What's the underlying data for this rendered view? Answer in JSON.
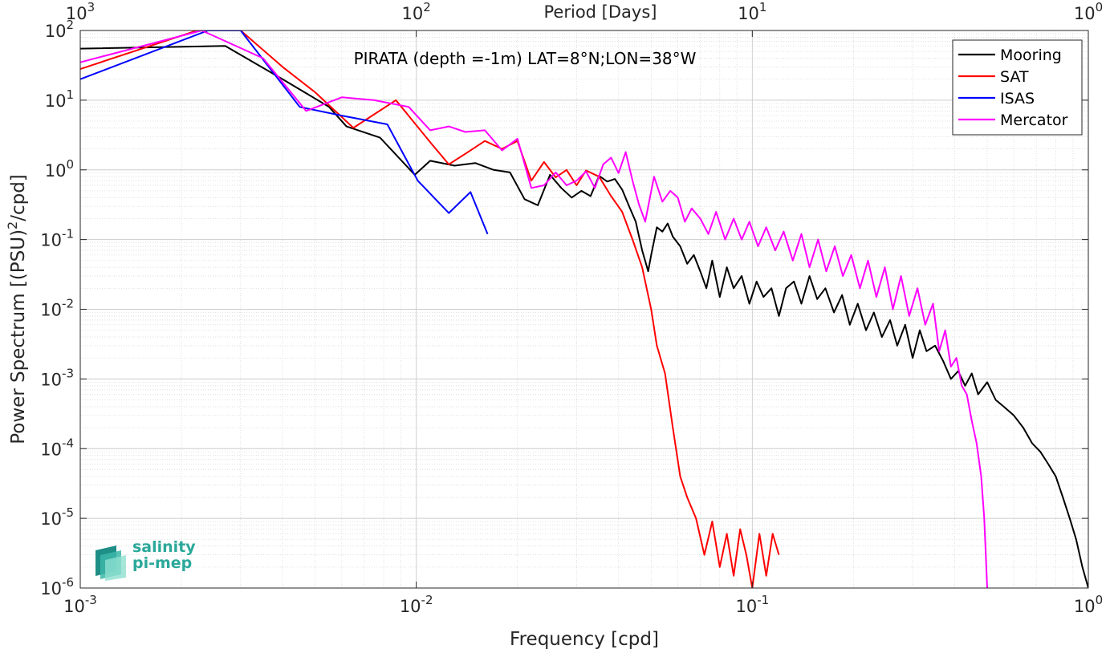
{
  "chart_data": {
    "type": "line",
    "title": "PIRATA (depth =-1m) LAT=8°N;LON=38°W",
    "xlabel": "Frequency [cpd]",
    "ylabel": "Power Spectrum [(PSU)^2/cpd]",
    "top_xlabel": "Period [Days]",
    "x_scale": "log",
    "y_scale": "log",
    "xlim": [
      0.001,
      1
    ],
    "ylim": [
      1e-06,
      100
    ],
    "grid": true,
    "legend_position": "top-right",
    "x_ticks": [
      0.001,
      0.01,
      0.1,
      1
    ],
    "y_ticks": [
      1e-06,
      1e-05,
      0.0001,
      0.001,
      0.01,
      0.1,
      1,
      10,
      100
    ],
    "top_ticks": [
      1000,
      100,
      10,
      1
    ],
    "series": [
      {
        "name": "Mooring",
        "color": "#000000",
        "points": [
          [
            0.001,
            55
          ],
          [
            0.0027,
            60
          ],
          [
            0.004,
            20
          ],
          [
            0.0055,
            8
          ],
          [
            0.0062,
            4.2
          ],
          [
            0.0078,
            2.9
          ],
          [
            0.0099,
            0.85
          ],
          [
            0.011,
            1.35
          ],
          [
            0.013,
            1.15
          ],
          [
            0.015,
            1.25
          ],
          [
            0.017,
            1.0
          ],
          [
            0.019,
            0.92
          ],
          [
            0.021,
            0.38
          ],
          [
            0.023,
            0.31
          ],
          [
            0.025,
            0.85
          ],
          [
            0.027,
            0.55
          ],
          [
            0.029,
            0.4
          ],
          [
            0.031,
            0.5
          ],
          [
            0.033,
            0.42
          ],
          [
            0.035,
            0.82
          ],
          [
            0.037,
            0.68
          ],
          [
            0.039,
            0.74
          ],
          [
            0.041,
            0.52
          ],
          [
            0.043,
            0.3
          ],
          [
            0.045,
            0.18
          ],
          [
            0.047,
            0.07
          ],
          [
            0.049,
            0.035
          ],
          [
            0.05,
            0.06
          ],
          [
            0.052,
            0.15
          ],
          [
            0.054,
            0.13
          ],
          [
            0.056,
            0.17
          ],
          [
            0.058,
            0.11
          ],
          [
            0.061,
            0.08
          ],
          [
            0.064,
            0.045
          ],
          [
            0.067,
            0.06
          ],
          [
            0.07,
            0.035
          ],
          [
            0.073,
            0.02
          ],
          [
            0.076,
            0.05
          ],
          [
            0.08,
            0.015
          ],
          [
            0.084,
            0.04
          ],
          [
            0.088,
            0.02
          ],
          [
            0.093,
            0.03
          ],
          [
            0.098,
            0.012
          ],
          [
            0.103,
            0.025
          ],
          [
            0.108,
            0.015
          ],
          [
            0.114,
            0.02
          ],
          [
            0.12,
            0.008
          ],
          [
            0.126,
            0.02
          ],
          [
            0.133,
            0.025
          ],
          [
            0.14,
            0.012
          ],
          [
            0.148,
            0.03
          ],
          [
            0.156,
            0.014
          ],
          [
            0.165,
            0.02
          ],
          [
            0.175,
            0.009
          ],
          [
            0.185,
            0.016
          ],
          [
            0.195,
            0.006
          ],
          [
            0.206,
            0.012
          ],
          [
            0.218,
            0.005
          ],
          [
            0.23,
            0.009
          ],
          [
            0.243,
            0.004
          ],
          [
            0.257,
            0.007
          ],
          [
            0.27,
            0.003
          ],
          [
            0.285,
            0.006
          ],
          [
            0.3,
            0.002
          ],
          [
            0.315,
            0.005
          ],
          [
            0.33,
            0.0025
          ],
          [
            0.35,
            0.003
          ],
          [
            0.37,
            0.0018
          ],
          [
            0.39,
            0.001
          ],
          [
            0.41,
            0.0013
          ],
          [
            0.43,
            0.0008
          ],
          [
            0.45,
            0.0012
          ],
          [
            0.47,
            0.0006
          ],
          [
            0.5,
            0.0009
          ],
          [
            0.53,
            0.0005
          ],
          [
            0.56,
            0.0004
          ],
          [
            0.6,
            0.0003
          ],
          [
            0.64,
            0.0002
          ],
          [
            0.68,
            0.00012
          ],
          [
            0.72,
            9e-05
          ],
          [
            0.76,
            6e-05
          ],
          [
            0.8,
            4e-05
          ],
          [
            0.84,
            2e-05
          ],
          [
            0.88,
            1e-05
          ],
          [
            0.92,
            5e-06
          ],
          [
            0.96,
            2e-06
          ],
          [
            1.0,
            1e-06
          ]
        ]
      },
      {
        "name": "SAT",
        "color": "#ff0000",
        "points": [
          [
            0.001,
            28
          ],
          [
            0.0025,
            120
          ],
          [
            0.003,
            100
          ],
          [
            0.004,
            30
          ],
          [
            0.005,
            13
          ],
          [
            0.0065,
            4.0
          ],
          [
            0.0087,
            10
          ],
          [
            0.011,
            2.5
          ],
          [
            0.0125,
            1.2
          ],
          [
            0.014,
            1.7
          ],
          [
            0.016,
            2.6
          ],
          [
            0.018,
            2.0
          ],
          [
            0.02,
            2.6
          ],
          [
            0.022,
            0.7
          ],
          [
            0.024,
            1.3
          ],
          [
            0.026,
            0.78
          ],
          [
            0.028,
            1.0
          ],
          [
            0.03,
            0.6
          ],
          [
            0.032,
            0.98
          ],
          [
            0.035,
            0.8
          ],
          [
            0.038,
            0.42
          ],
          [
            0.041,
            0.25
          ],
          [
            0.044,
            0.1
          ],
          [
            0.047,
            0.04
          ],
          [
            0.05,
            0.01
          ],
          [
            0.052,
            0.003
          ],
          [
            0.055,
            0.0012
          ],
          [
            0.058,
            0.0002
          ],
          [
            0.061,
            4e-05
          ],
          [
            0.064,
            2e-05
          ],
          [
            0.068,
            1e-05
          ],
          [
            0.072,
            3e-06
          ],
          [
            0.076,
            9e-06
          ],
          [
            0.08,
            2e-06
          ],
          [
            0.084,
            6e-06
          ],
          [
            0.088,
            1.5e-06
          ],
          [
            0.092,
            7e-06
          ],
          [
            0.096,
            3e-06
          ],
          [
            0.1,
            1e-06
          ],
          [
            0.105,
            6e-06
          ],
          [
            0.11,
            1.5e-06
          ],
          [
            0.115,
            6e-06
          ],
          [
            0.12,
            3e-06
          ]
        ]
      },
      {
        "name": "ISAS",
        "color": "#0000ff",
        "points": [
          [
            0.001,
            20
          ],
          [
            0.0024,
            100
          ],
          [
            0.003,
            100
          ],
          [
            0.0045,
            8
          ],
          [
            0.006,
            6
          ],
          [
            0.0082,
            4.5
          ],
          [
            0.0101,
            0.7
          ],
          [
            0.0125,
            0.24
          ],
          [
            0.0145,
            0.48
          ],
          [
            0.0163,
            0.12
          ]
        ]
      },
      {
        "name": "Mercator",
        "color": "#ff00ff",
        "points": [
          [
            0.001,
            35
          ],
          [
            0.0023,
            100
          ],
          [
            0.0035,
            40
          ],
          [
            0.0047,
            7
          ],
          [
            0.006,
            11
          ],
          [
            0.0075,
            10
          ],
          [
            0.0095,
            8
          ],
          [
            0.011,
            3.7
          ],
          [
            0.0125,
            4.2
          ],
          [
            0.014,
            3.5
          ],
          [
            0.016,
            3.7
          ],
          [
            0.018,
            1.9
          ],
          [
            0.02,
            2.8
          ],
          [
            0.022,
            0.55
          ],
          [
            0.024,
            0.6
          ],
          [
            0.026,
            0.92
          ],
          [
            0.028,
            0.6
          ],
          [
            0.03,
            0.7
          ],
          [
            0.032,
            0.95
          ],
          [
            0.034,
            0.55
          ],
          [
            0.036,
            1.2
          ],
          [
            0.038,
            1.5
          ],
          [
            0.04,
            0.9
          ],
          [
            0.042,
            1.8
          ],
          [
            0.044,
            0.7
          ],
          [
            0.046,
            0.32
          ],
          [
            0.048,
            0.18
          ],
          [
            0.051,
            0.8
          ],
          [
            0.054,
            0.35
          ],
          [
            0.057,
            0.5
          ],
          [
            0.06,
            0.4
          ],
          [
            0.063,
            0.18
          ],
          [
            0.066,
            0.28
          ],
          [
            0.07,
            0.2
          ],
          [
            0.074,
            0.12
          ],
          [
            0.078,
            0.25
          ],
          [
            0.083,
            0.1
          ],
          [
            0.088,
            0.2
          ],
          [
            0.093,
            0.1
          ],
          [
            0.098,
            0.18
          ],
          [
            0.104,
            0.08
          ],
          [
            0.11,
            0.15
          ],
          [
            0.117,
            0.07
          ],
          [
            0.124,
            0.13
          ],
          [
            0.132,
            0.05
          ],
          [
            0.14,
            0.12
          ],
          [
            0.148,
            0.04
          ],
          [
            0.157,
            0.1
          ],
          [
            0.166,
            0.035
          ],
          [
            0.176,
            0.08
          ],
          [
            0.186,
            0.03
          ],
          [
            0.197,
            0.06
          ],
          [
            0.209,
            0.02
          ],
          [
            0.221,
            0.05
          ],
          [
            0.234,
            0.015
          ],
          [
            0.248,
            0.04
          ],
          [
            0.262,
            0.01
          ],
          [
            0.277,
            0.03
          ],
          [
            0.293,
            0.008
          ],
          [
            0.31,
            0.02
          ],
          [
            0.327,
            0.006
          ],
          [
            0.345,
            0.012
          ],
          [
            0.36,
            0.0025
          ],
          [
            0.375,
            0.005
          ],
          [
            0.39,
            0.0015
          ],
          [
            0.405,
            0.002
          ],
          [
            0.42,
            0.0008
          ],
          [
            0.435,
            0.0006
          ],
          [
            0.45,
            0.00025
          ],
          [
            0.465,
            0.00012
          ],
          [
            0.48,
            4e-05
          ],
          [
            0.49,
            1e-05
          ],
          [
            0.5,
            1e-06
          ]
        ]
      }
    ]
  },
  "logo": {
    "line1": "salinity",
    "line2": "pi-mep"
  }
}
